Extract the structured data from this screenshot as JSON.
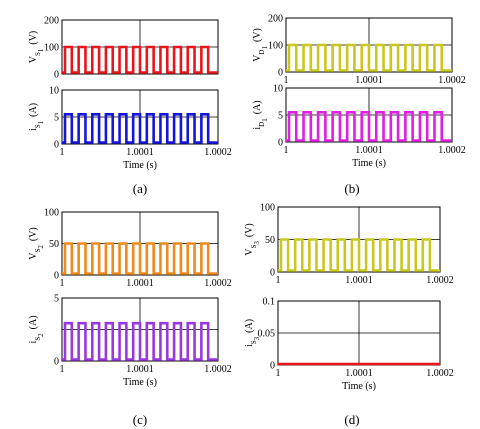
{
  "chart_data": [
    {
      "id": "a1",
      "type": "line",
      "panel": "(a)",
      "ylabel": {
        "main": "V",
        "sub": "S",
        "subsub": "1"
      },
      "unit": "(V)",
      "xlim": [
        1,
        1.0002
      ],
      "ylim": [
        0,
        200
      ],
      "yticks": [
        "0",
        "100",
        "200"
      ],
      "xticks": [],
      "xlabel": "",
      "color": "#e8161b",
      "series": [
        {
          "waveform": "square",
          "low": 0,
          "high": 100,
          "cycles": 11,
          "duty": 0.5
        }
      ]
    },
    {
      "id": "a2",
      "type": "line",
      "panel": "(a)",
      "ylabel": {
        "main": "i",
        "sub": "S",
        "subsub": "1"
      },
      "unit": "(A)",
      "xlim": [
        1,
        1.0002
      ],
      "ylim": [
        0,
        10
      ],
      "yticks": [
        "0",
        "5",
        "10"
      ],
      "xticks": [
        "1",
        "1.0001",
        "1.0002"
      ],
      "xlabel": "Time (s)",
      "color": "#1616d8",
      "series": [
        {
          "waveform": "square",
          "low": 0,
          "high": 5.5,
          "cycles": 11,
          "duty": 0.5
        }
      ]
    },
    {
      "id": "b1",
      "type": "line",
      "panel": "(b)",
      "ylabel": {
        "main": "V",
        "sub": "D",
        "subsub": "1"
      },
      "unit": "(V)",
      "xlim": [
        1,
        1.0002
      ],
      "ylim": [
        0,
        200
      ],
      "yticks": [
        "0",
        "100",
        "200"
      ],
      "xticks": [
        "1",
        "1.0001",
        "1.0002"
      ],
      "xlabel": "",
      "color": "#c8c820",
      "series": [
        {
          "waveform": "square",
          "low": 0,
          "high": 100,
          "cycles": 11,
          "duty": 0.5
        }
      ]
    },
    {
      "id": "b2",
      "type": "line",
      "panel": "(b)",
      "ylabel": {
        "main": "i",
        "sub": "D",
        "subsub": "1"
      },
      "unit": "(A)",
      "xlim": [
        1,
        1.0002
      ],
      "ylim": [
        0,
        10
      ],
      "yticks": [
        "0",
        "5",
        "10"
      ],
      "xticks": [
        "1",
        "1.0001",
        "1.0002"
      ],
      "xlabel": "Time (s)",
      "color": "#e020e0",
      "series": [
        {
          "waveform": "square",
          "low": 0,
          "high": 5.5,
          "cycles": 11,
          "duty": 0.5
        }
      ]
    },
    {
      "id": "c1",
      "type": "line",
      "panel": "(c)",
      "ylabel": {
        "main": "V",
        "sub": "S",
        "subsub": "2"
      },
      "unit": "(V)",
      "xlim": [
        1,
        1.0002
      ],
      "ylim": [
        0,
        100
      ],
      "yticks": [
        "0",
        "50",
        "100"
      ],
      "xticks": [
        "1",
        "1.0001",
        "1.0002"
      ],
      "xlabel": "",
      "color": "#f08a1c",
      "series": [
        {
          "waveform": "square",
          "low": 0,
          "high": 50,
          "cycles": 11,
          "duty": 0.5
        }
      ]
    },
    {
      "id": "c2",
      "type": "line",
      "panel": "(c)",
      "ylabel": {
        "main": "i",
        "sub": "S",
        "subsub": "2"
      },
      "unit": "(A)",
      "xlim": [
        1,
        1.0002
      ],
      "ylim": [
        0,
        5
      ],
      "yticks": [
        "0",
        "5"
      ],
      "xticks": [
        "1",
        "1.0001",
        "1.0002"
      ],
      "xlabel": "Time (s)",
      "color": "#9a38e0",
      "series": [
        {
          "waveform": "square",
          "low": 0,
          "high": 3,
          "cycles": 11,
          "duty": 0.5
        }
      ]
    },
    {
      "id": "d1",
      "type": "line",
      "panel": "(d)",
      "ylabel": {
        "main": "V",
        "sub": "S",
        "subsub": "3"
      },
      "unit": "(V)",
      "xlim": [
        1,
        1.0002
      ],
      "ylim": [
        0,
        100
      ],
      "yticks": [
        "0",
        "50",
        "100"
      ],
      "xticks": [
        "1",
        "1.0001",
        "1.0002"
      ],
      "xlabel": "",
      "color": "#c8c820",
      "series": [
        {
          "waveform": "square",
          "low": 0,
          "high": 50,
          "cycles": 11,
          "duty": 0.5
        }
      ]
    },
    {
      "id": "d2",
      "type": "line",
      "panel": "(d)",
      "ylabel": {
        "main": "i",
        "sub": "S",
        "subsub": "3"
      },
      "unit": "(A)",
      "xlim": [
        1,
        1.0002
      ],
      "ylim": [
        0,
        0.1
      ],
      "yticks": [
        "0",
        "0.05",
        "0.1"
      ],
      "xticks": [
        "1",
        "1.0001",
        "1.0002"
      ],
      "xlabel": "Time (s)",
      "color": "#e8161b",
      "series": [
        {
          "waveform": "flat",
          "low": 0,
          "high": 0,
          "cycles": 0,
          "duty": 0.5
        }
      ]
    }
  ],
  "captions": {
    "a": "(a)",
    "b": "(b)",
    "c": "(c)",
    "d": "(d)"
  }
}
